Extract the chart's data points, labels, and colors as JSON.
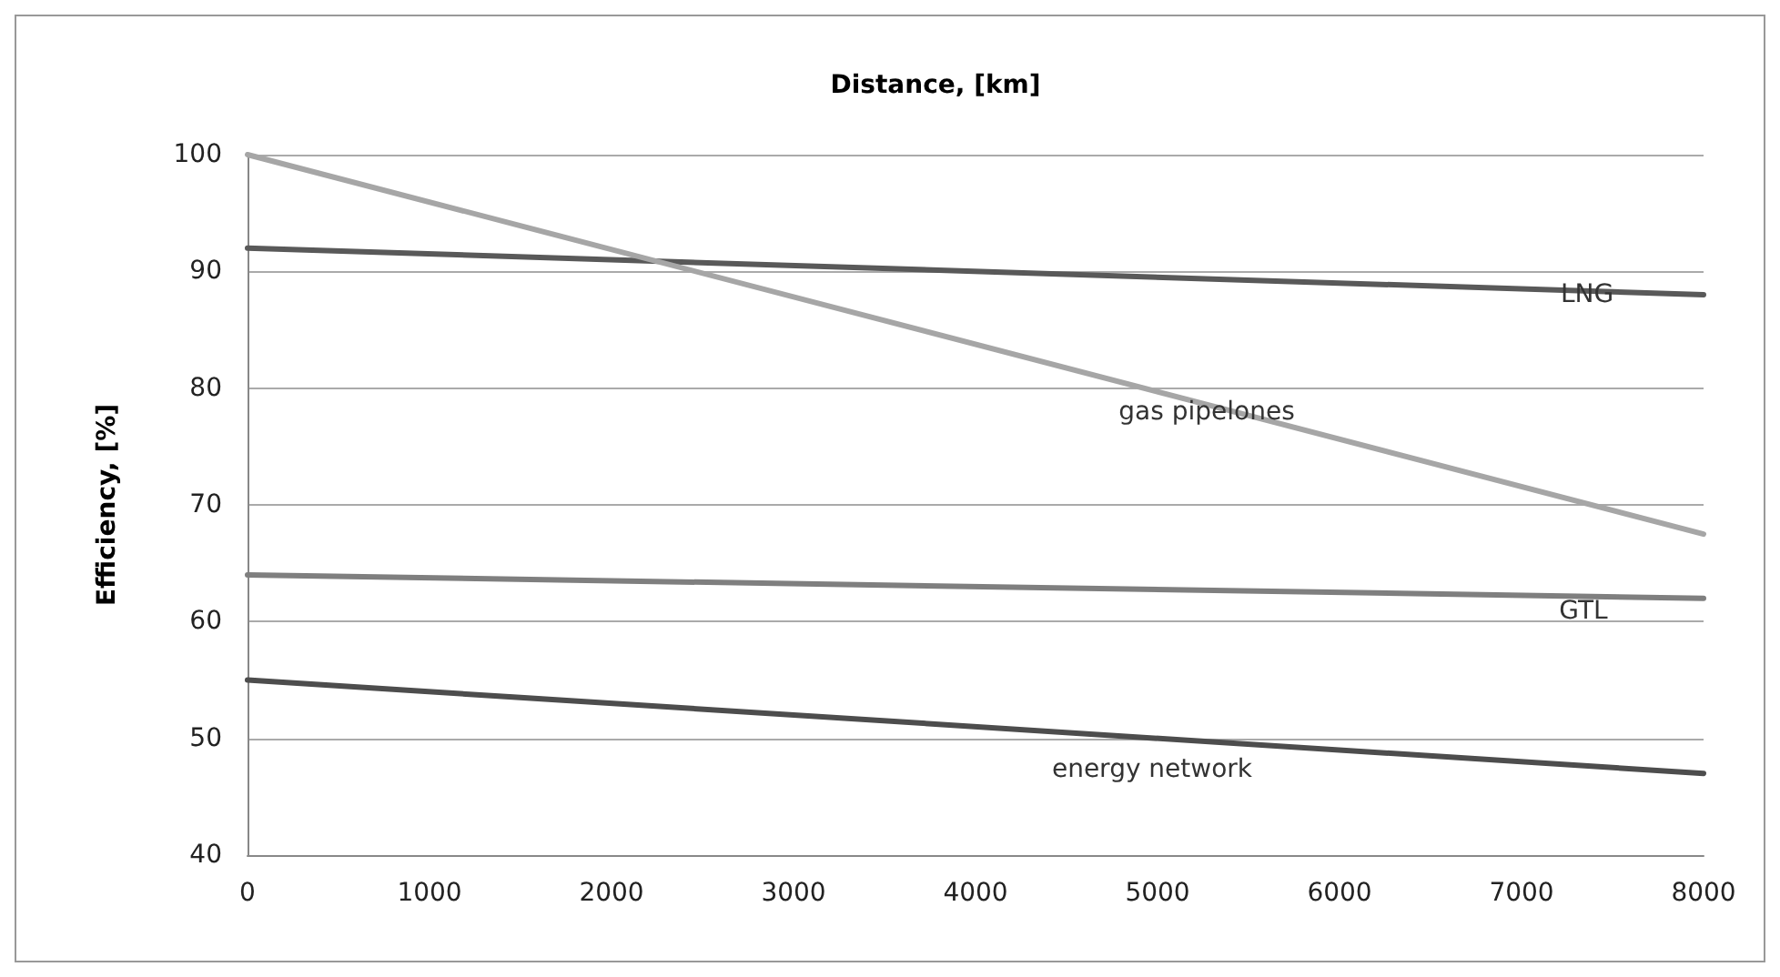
{
  "chart_data": {
    "type": "line",
    "xlabel": "Distance, [km]",
    "ylabel": "Efficiency, [%]",
    "x": [
      0,
      8000
    ],
    "xlim": [
      0,
      8000
    ],
    "xticks": [
      0,
      1000,
      2000,
      3000,
      4000,
      5000,
      6000,
      7000,
      8000
    ],
    "ylim": [
      40,
      100
    ],
    "yticks": [
      40,
      50,
      60,
      70,
      80,
      90,
      100
    ],
    "grid": "y",
    "legend": false,
    "marker": "none",
    "line_style": "solid",
    "series": [
      {
        "name": "LNG",
        "color": "#595959",
        "values": [
          92,
          88
        ]
      },
      {
        "name": "gas pipelones",
        "color": "#a6a6a6",
        "values": [
          100,
          67.5
        ]
      },
      {
        "name": "GTL",
        "color": "#7f7f7f",
        "values": [
          64,
          62
        ]
      },
      {
        "name": "energy network",
        "color": "#4d4d4d",
        "values": [
          55,
          47
        ]
      }
    ]
  }
}
